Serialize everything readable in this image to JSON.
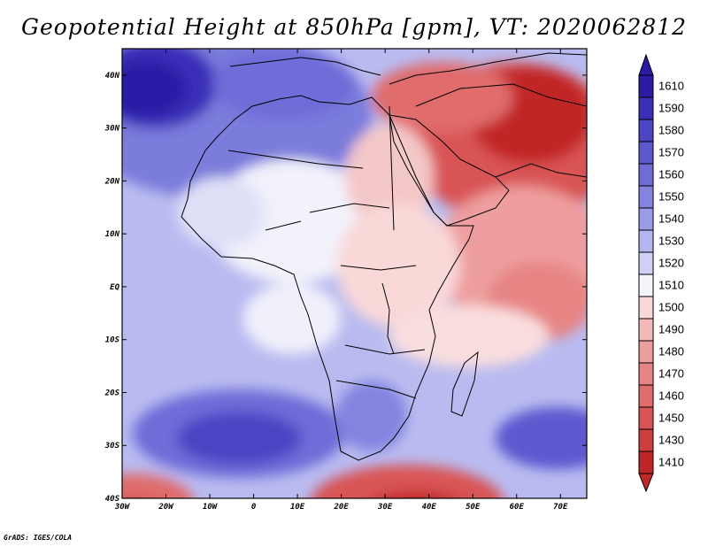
{
  "title": "Geopotential Height at 850hPa [gpm], VT: 2020062812",
  "credit": "GrADS: IGES/COLA",
  "map": {
    "lon_range": [
      -30,
      76
    ],
    "lat_range": [
      -40,
      45
    ],
    "lat_ticks": [
      {
        "value": 40,
        "label": "40N"
      },
      {
        "value": 30,
        "label": "30N"
      },
      {
        "value": 20,
        "label": "20N"
      },
      {
        "value": 10,
        "label": "10N"
      },
      {
        "value": 0,
        "label": "EQ"
      },
      {
        "value": -10,
        "label": "10S"
      },
      {
        "value": -20,
        "label": "20S"
      },
      {
        "value": -30,
        "label": "30S"
      },
      {
        "value": -40,
        "label": "40S"
      }
    ],
    "lon_ticks": [
      {
        "value": -30,
        "label": "30W"
      },
      {
        "value": -20,
        "label": "20W"
      },
      {
        "value": -10,
        "label": "10W"
      },
      {
        "value": 0,
        "label": "0"
      },
      {
        "value": 10,
        "label": "10E"
      },
      {
        "value": 20,
        "label": "20E"
      },
      {
        "value": 30,
        "label": "30E"
      },
      {
        "value": 40,
        "label": "40E"
      },
      {
        "value": 50,
        "label": "50E"
      },
      {
        "value": 60,
        "label": "60E"
      },
      {
        "value": 70,
        "label": "70E"
      }
    ]
  },
  "colorbar": {
    "levels": [
      {
        "label": "1610",
        "color": "#2a1aa6"
      },
      {
        "label": "1590",
        "color": "#3a2fb8"
      },
      {
        "label": "1580",
        "color": "#4b44c4"
      },
      {
        "label": "1570",
        "color": "#5d58cf"
      },
      {
        "label": "1560",
        "color": "#6f6cd8"
      },
      {
        "label": "1550",
        "color": "#8483e0"
      },
      {
        "label": "1540",
        "color": "#9b9ce8"
      },
      {
        "label": "1530",
        "color": "#b4b6ef"
      },
      {
        "label": "1520",
        "color": "#cfd1f6"
      },
      {
        "label": "1510",
        "color": "#f4f4fb"
      },
      {
        "label": "1500",
        "color": "#f9d8d8"
      },
      {
        "label": "1490",
        "color": "#f4baba"
      },
      {
        "label": "1480",
        "color": "#ee9e9e"
      },
      {
        "label": "1470",
        "color": "#e78585"
      },
      {
        "label": "1460",
        "color": "#e06c6c"
      },
      {
        "label": "1450",
        "color": "#d95555"
      },
      {
        "label": "1430",
        "color": "#cf3d3d"
      },
      {
        "label": "1410",
        "color": "#c12626"
      }
    ]
  }
}
